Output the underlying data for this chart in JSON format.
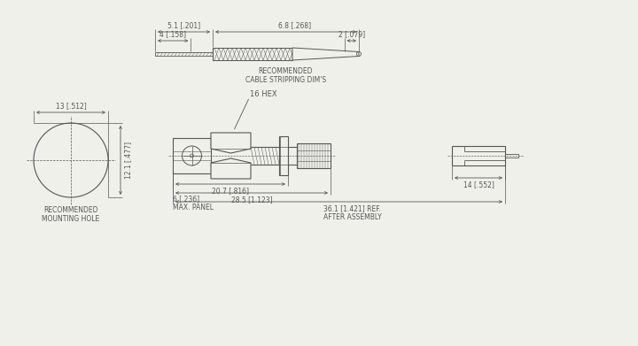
{
  "bg_color": "#f0f0eb",
  "line_color": "#555555",
  "cable_strip": {
    "label": "RECOMMENDED\nCABLE STRIPPING DIM'S",
    "dims": [
      "5.1 [.201]",
      "4 [.158]",
      "6.8 [.268]",
      "2 [.079]"
    ]
  },
  "mounting_hole": {
    "label": "RECOMMENDED\nMOUNTING HOLE",
    "dims": [
      "13 [.512]",
      "12.1 [.477]"
    ]
  },
  "connector": {
    "hex_label": "16 HEX",
    "panel_label": "6 [.236]\nMAX. PANEL",
    "dims": [
      "20.7 [.816]",
      "28.5 [1.123]",
      "36.1 [1.421] REF.\nAFTER ASSEMBLY",
      "14 [.552]"
    ]
  }
}
